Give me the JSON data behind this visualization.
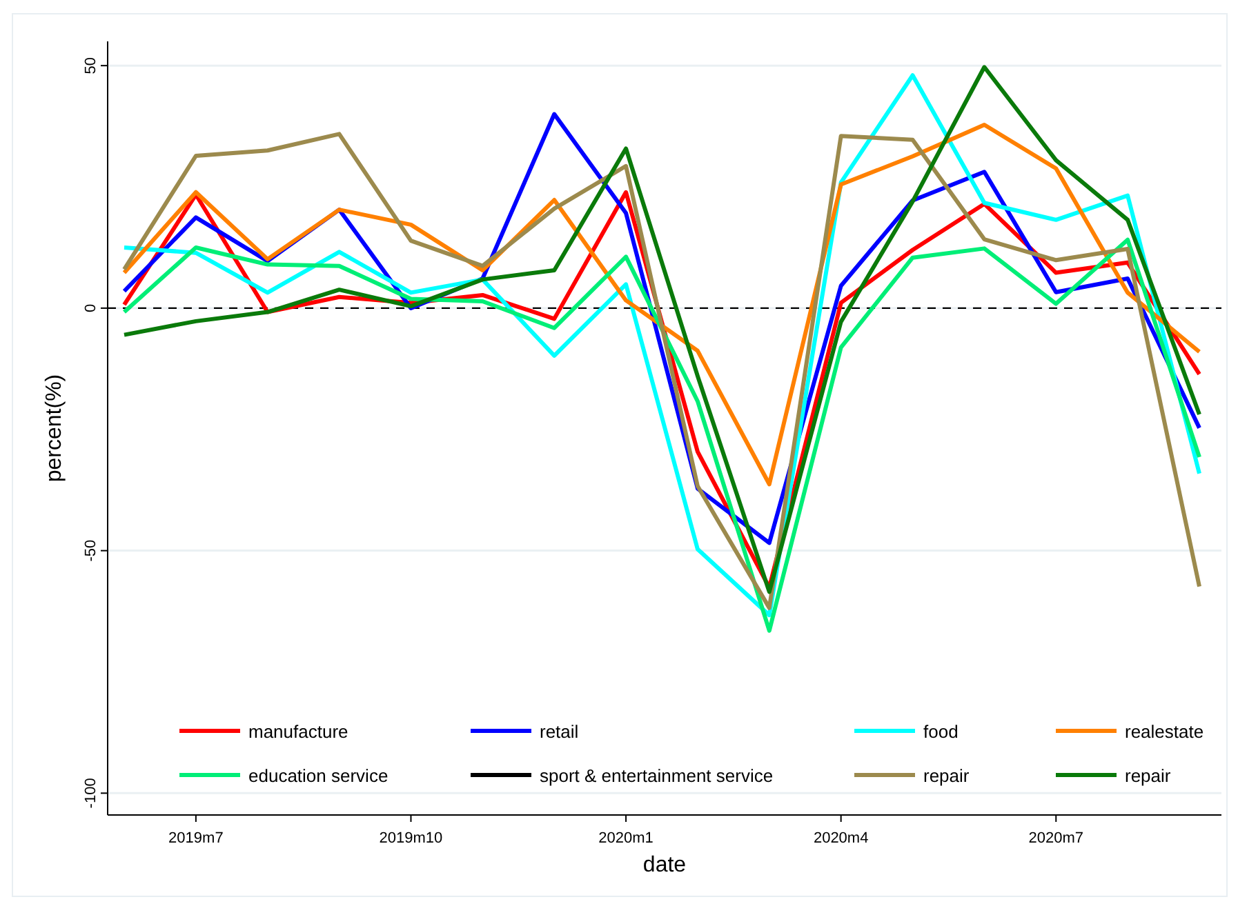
{
  "chart_data": {
    "type": "line",
    "xlabel": "date",
    "ylabel": "percent(%)",
    "categories": [
      null,
      "2019m7",
      null,
      null,
      "2019m10",
      null,
      null,
      "2020m1",
      null,
      null,
      "2020m4",
      null,
      null,
      "2020m7",
      null,
      null
    ],
    "ylim": [
      -104.5,
      55
    ],
    "yticks": [
      -100,
      -50,
      0,
      50
    ],
    "grid": "y",
    "legend": "bottom",
    "line_style": "solid",
    "marker": "none",
    "ref_lines": [
      {
        "axis": "y",
        "value": 0,
        "color": "#000000",
        "line_style": "dashed"
      }
    ],
    "series": [
      {
        "name": "manufacture",
        "color": "#ff0000",
        "values": [
          0.7,
          23.4,
          -0.8,
          2.3,
          1.1,
          2.7,
          -2.2,
          23.9,
          -29.6,
          -57.6,
          1.1,
          12.0,
          21.5,
          7.3,
          9.4,
          -13.6
        ]
      },
      {
        "name": "retail",
        "color": "#0000ff",
        "values": [
          3.5,
          18.7,
          9.7,
          20.3,
          0,
          6.1,
          40.0,
          19.6,
          -37.2,
          -48.4,
          4.6,
          22.2,
          28.1,
          3.3,
          6.1,
          -24.7
        ]
      },
      {
        "name": "food",
        "color": "#00ffff",
        "values": [
          12.5,
          11.4,
          3.2,
          11.6,
          3.2,
          5.9,
          -9.8,
          4.9,
          -49.7,
          -63.3,
          25.9,
          48.0,
          21.7,
          18.2,
          23.2,
          -34.1
        ]
      },
      {
        "name": "realestate",
        "color": "#ff8000",
        "values": [
          7.3,
          23.9,
          10.1,
          20.3,
          17.2,
          7.8,
          22.3,
          1.6,
          -8.8,
          -36.3,
          25.5,
          31.3,
          37.8,
          28.8,
          3.2,
          -9.0
        ]
      },
      {
        "name": "education service",
        "color": "#00ee77",
        "values": [
          -0.8,
          12.5,
          9.0,
          8.7,
          1.9,
          1.4,
          -4.1,
          10.6,
          -19.2,
          -66.5,
          -8.1,
          10.4,
          12.3,
          0.9,
          14.1,
          -30.7
        ]
      },
      {
        "name": "sport & entertainment service",
        "color": "#000000",
        "values": [
          null,
          null,
          null,
          null,
          null,
          null,
          null,
          null,
          null,
          null,
          null,
          null,
          null,
          null,
          null,
          null
        ]
      },
      {
        "name": "repair",
        "color": "#9c8a4d",
        "values": [
          8.0,
          31.4,
          32.5,
          35.9,
          13.9,
          8.7,
          20.5,
          29.3,
          -36.7,
          -61.8,
          35.5,
          34.7,
          14.2,
          9.9,
          12.2,
          -57.4
        ]
      },
      {
        "name": "repair",
        "color": "#0a7a0a",
        "values": [
          -5.5,
          -2.7,
          -0.8,
          3.8,
          0.4,
          5.9,
          7.8,
          32.9,
          -14.0,
          -58.5,
          -2.8,
          22.0,
          49.7,
          30.5,
          18.2,
          -21.9
        ]
      }
    ]
  }
}
